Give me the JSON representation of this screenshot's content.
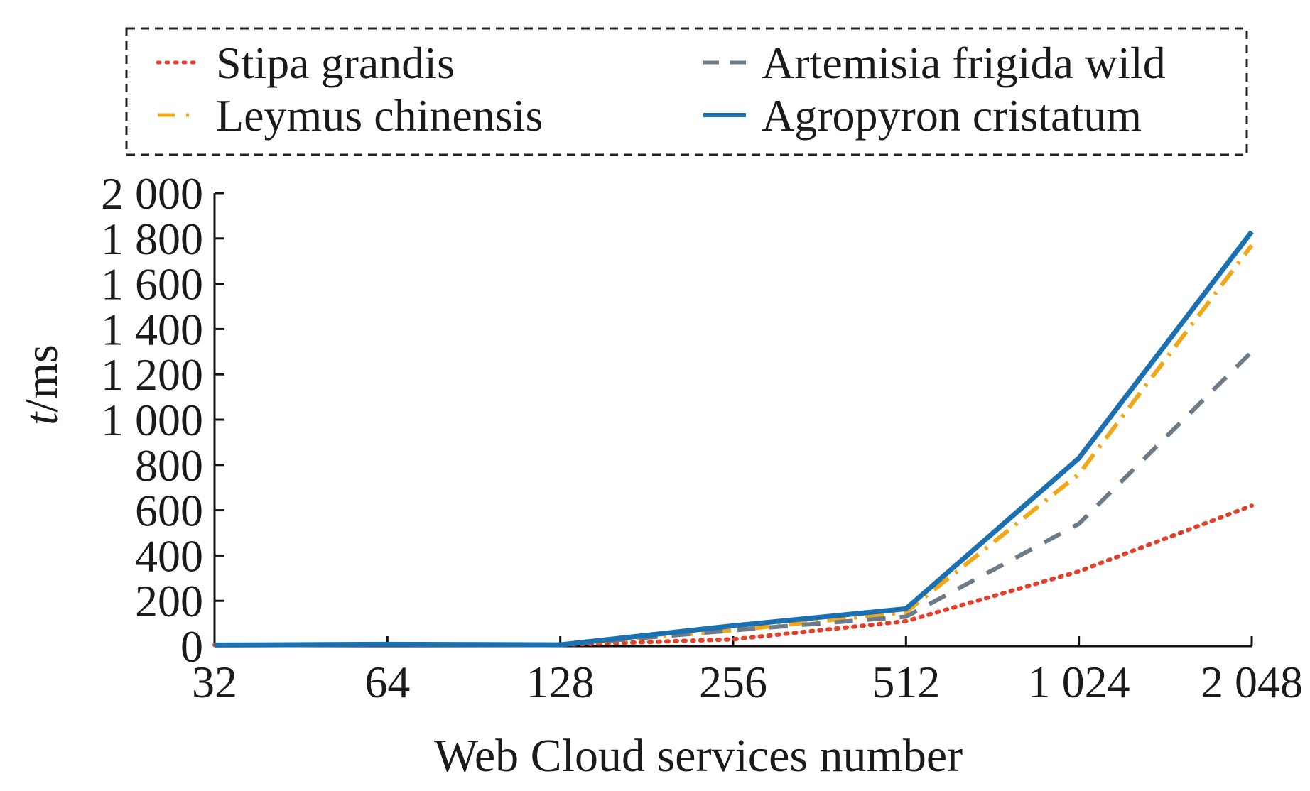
{
  "chart_data": {
    "type": "line",
    "xlabel": "Web Cloud services number",
    "ylabel_italic": "t",
    "ylabel_rest": "/ms",
    "categories": [
      "32",
      "64",
      "128",
      "256",
      "512",
      "1 024",
      "2 048"
    ],
    "ylim": [
      0,
      2000
    ],
    "yticks": [
      0,
      200,
      400,
      600,
      800,
      1000,
      1200,
      1400,
      1600,
      1800,
      2000
    ],
    "ytick_labels": [
      "0",
      "200",
      "400",
      "600",
      "800",
      "1 000",
      "1 200",
      "1 400",
      "1 600",
      "1 800",
      "2 000"
    ],
    "legend_position": "top",
    "series": [
      {
        "name": "Stipa grandis",
        "color": "#e0402a",
        "style": "dotted",
        "values": [
          5,
          8,
          6,
          30,
          110,
          330,
          620
        ]
      },
      {
        "name": "Leymus chinensis",
        "color": "#f0a818",
        "style": "dashdot",
        "values": [
          5,
          8,
          6,
          70,
          150,
          760,
          1770
        ]
      },
      {
        "name": "Artemisia frigida wild",
        "color": "#6b7b88",
        "style": "dashed",
        "values": [
          5,
          8,
          6,
          70,
          130,
          540,
          1300
        ]
      },
      {
        "name": "Agropyron cristatum",
        "color": "#1a70b0",
        "style": "solid",
        "values": [
          5,
          8,
          6,
          90,
          165,
          830,
          1830
        ]
      }
    ]
  }
}
